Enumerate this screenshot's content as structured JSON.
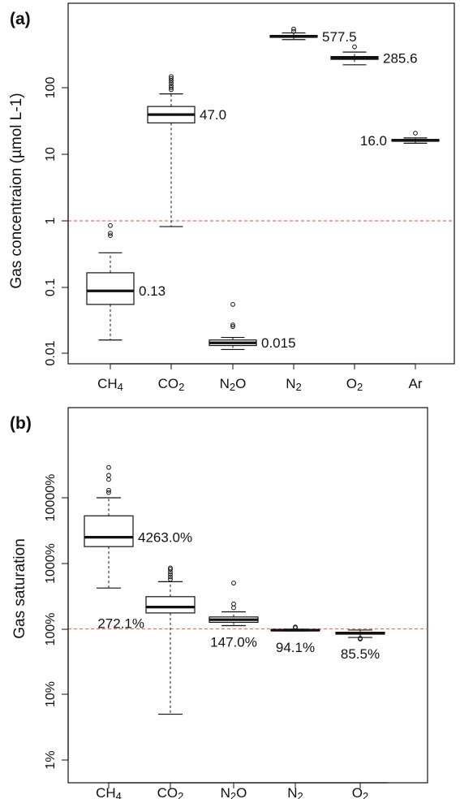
{
  "panels": [
    {
      "label": "(a)",
      "ylabel": "Gas concentraion (µmol L-1)",
      "yticks": [
        "0.01",
        "0.1",
        "1",
        "10",
        "100"
      ]
    },
    {
      "label": "(b)",
      "ylabel": "Gas saturation",
      "yticks": [
        "1%",
        "10%",
        "100%",
        "1000%",
        "10000%"
      ]
    }
  ],
  "chart_data": [
    {
      "type": "box",
      "panel": "(a)",
      "ylabel": "Gas concentraion (µmol L-1)",
      "yscale": "log",
      "ylim": [
        0.008,
        5000
      ],
      "reference_line": {
        "y": 1,
        "color": "#e8735a",
        "style": "dashed"
      },
      "grid": false,
      "categories": [
        {
          "name": "CH",
          "sub": "4"
        },
        {
          "name": "CO",
          "sub": "2"
        },
        {
          "name": "N",
          "sub": "2",
          "tail": "O"
        },
        {
          "name": "N",
          "sub": "2"
        },
        {
          "name": "O",
          "sub": "2"
        },
        {
          "name": "Ar",
          "sub": ""
        }
      ],
      "boxes": [
        {
          "whisker_low": 0.016,
          "q1": 0.055,
          "median": 0.088,
          "q3": 0.165,
          "whisker_high": 0.33,
          "outliers": [
            0.6,
            0.65,
            0.85
          ],
          "annotation": "0.13"
        },
        {
          "whisker_low": 0.82,
          "q1": 30,
          "median": 40,
          "q3": 53,
          "whisker_high": 82,
          "outliers": [
            95,
            102,
            110,
            120,
            130,
            140,
            150
          ],
          "annotation": "47.0"
        },
        {
          "whisker_low": 0.0115,
          "q1": 0.0132,
          "median": 0.0145,
          "q3": 0.016,
          "whisker_high": 0.0175,
          "outliers": [
            0.0255,
            0.027,
            0.055
          ],
          "annotation": "0.015"
        },
        {
          "whisker_low": 540,
          "q1": 585,
          "median": 600,
          "q3": 625,
          "whisker_high": 680,
          "outliers": [
            720,
            780
          ],
          "annotation": "577.5"
        },
        {
          "whisker_low": 225,
          "q1": 272,
          "median": 285,
          "q3": 300,
          "whisker_high": 350,
          "outliers": [
            420
          ],
          "annotation": "285.6"
        },
        {
          "whisker_low": 14.8,
          "q1": 15.9,
          "median": 16.3,
          "q3": 16.9,
          "whisker_high": 17.8,
          "outliers": [
            21
          ],
          "annotation": "16.0"
        }
      ]
    },
    {
      "type": "box",
      "panel": "(b)",
      "ylabel": "Gas saturation",
      "yscale": "log",
      "ylim": [
        0.7,
        90000
      ],
      "reference_line": {
        "y": 100,
        "color": "#e8735a",
        "style": "dashed"
      },
      "grid": false,
      "categories": [
        {
          "name": "CH",
          "sub": "4"
        },
        {
          "name": "CO",
          "sub": "2"
        },
        {
          "name": "N",
          "sub": "2",
          "tail": "O"
        },
        {
          "name": "N",
          "sub": "2"
        },
        {
          "name": "O",
          "sub": "2"
        }
      ],
      "boxes": [
        {
          "whisker_low": 420,
          "q1": 1800,
          "median": 2500,
          "q3": 5300,
          "whisker_high": 10000,
          "outliers": [
            12000,
            13000,
            19000,
            22000,
            29000
          ],
          "annotation": "4263.0%"
        },
        {
          "whisker_low": 5,
          "q1": 175,
          "median": 215,
          "q3": 310,
          "whisker_high": 525,
          "outliers": [
            570,
            620,
            680,
            740,
            810,
            850
          ],
          "annotation": "272.1%"
        },
        {
          "whisker_low": 112,
          "q1": 126,
          "median": 138,
          "q3": 152,
          "whisker_high": 182,
          "outliers": [
            210,
            240,
            500
          ],
          "annotation": "147.0%"
        },
        {
          "whisker_low": 93,
          "q1": 94.5,
          "median": 95.5,
          "q3": 97,
          "whisker_high": 99,
          "outliers": [
            104,
            107
          ],
          "annotation": "94.1%"
        },
        {
          "whisker_low": 74,
          "q1": 83,
          "median": 86,
          "q3": 89,
          "whisker_high": 96,
          "outliers": [
            70,
            72
          ],
          "annotation": "85.5%"
        }
      ]
    }
  ]
}
